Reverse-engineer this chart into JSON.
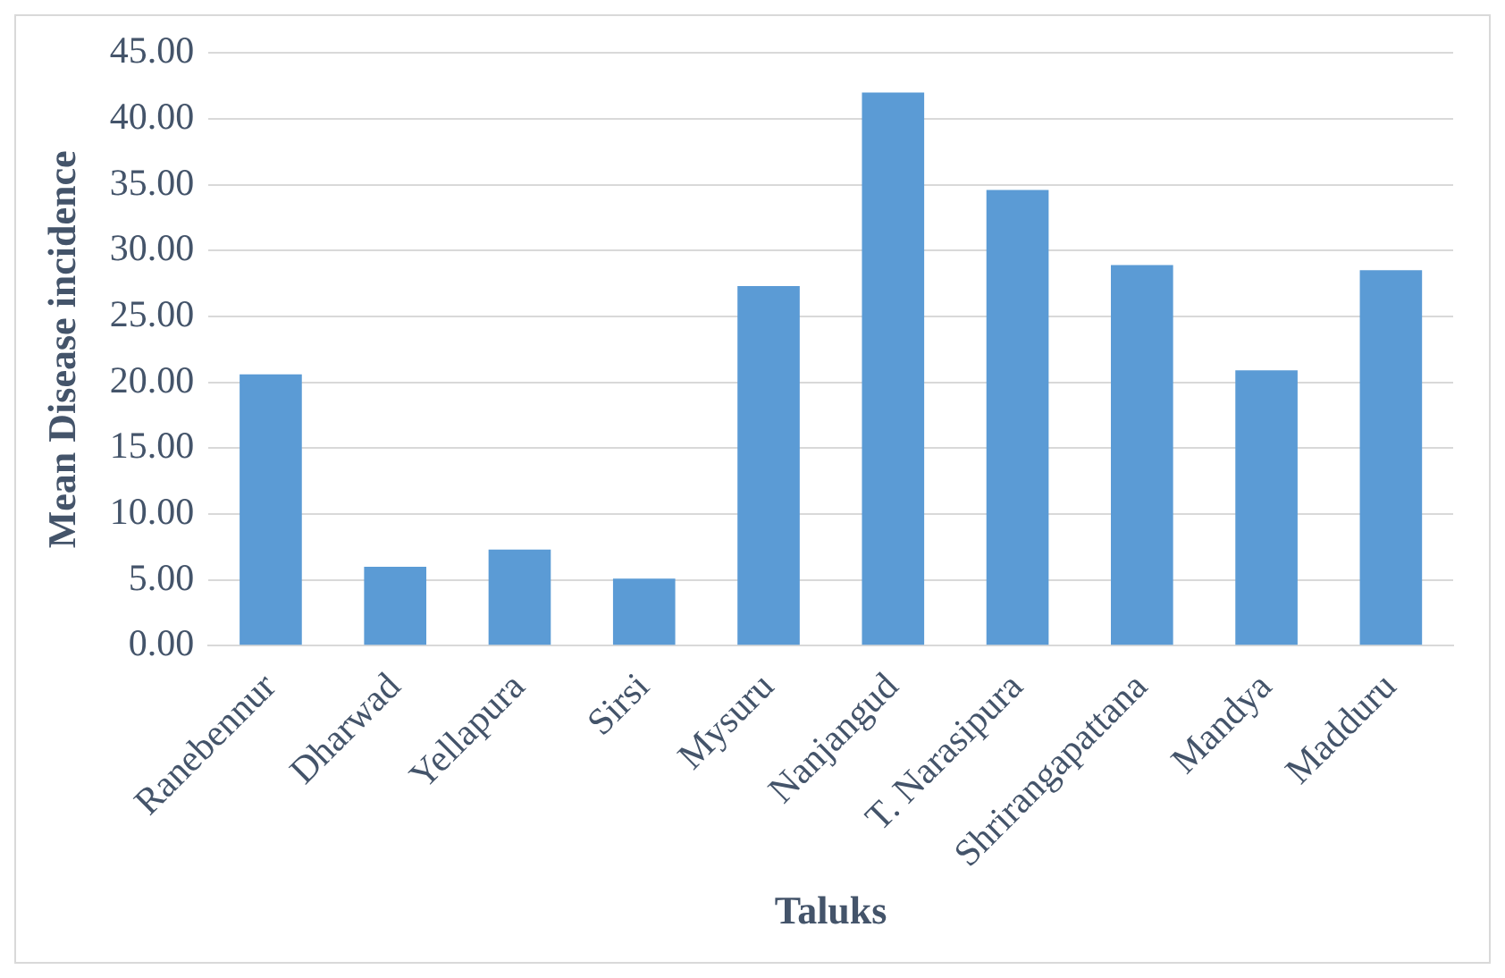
{
  "chart_data": {
    "type": "bar",
    "xlabel": "Taluks",
    "ylabel": "Mean Disease incidence",
    "categories": [
      "Ranebennur",
      "Dharwad",
      "Yellapura",
      "Sirsi",
      "Mysuru",
      "Nanjangud",
      "T. Narasipura",
      "Shrirangapattana",
      "Mandya",
      "Madduru"
    ],
    "values": [
      20.6,
      6.0,
      7.3,
      5.1,
      27.3,
      42.0,
      34.6,
      28.9,
      20.9,
      28.5
    ],
    "color": "#5b9bd5",
    "ylim": [
      0,
      45
    ],
    "yticks": [
      {
        "value": 0,
        "label": "0.00"
      },
      {
        "value": 5,
        "label": "5.00"
      },
      {
        "value": 10,
        "label": "10.00"
      },
      {
        "value": 15,
        "label": "15.00"
      },
      {
        "value": 20,
        "label": "20.00"
      },
      {
        "value": 25,
        "label": "25.00"
      },
      {
        "value": 30,
        "label": "30.00"
      },
      {
        "value": 35,
        "label": "35.00"
      },
      {
        "value": 40,
        "label": "40.00"
      },
      {
        "value": 45,
        "label": "45.00"
      }
    ],
    "grid": "y",
    "legend": false
  }
}
